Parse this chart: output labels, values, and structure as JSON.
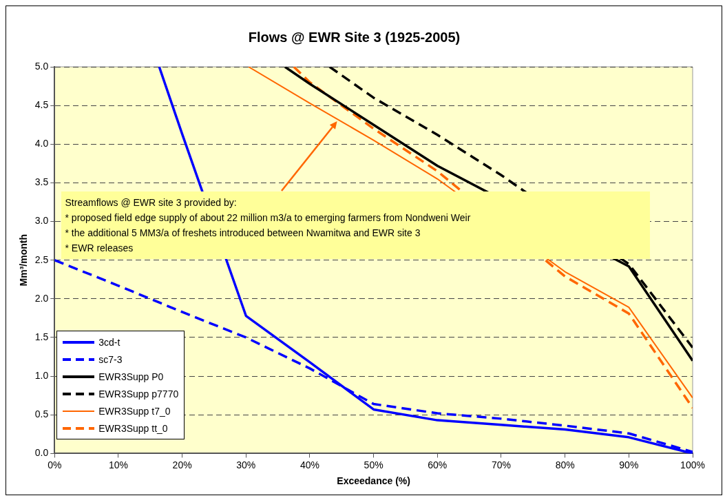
{
  "chart_data": {
    "type": "line",
    "title": "Flows @ EWR Site 3 (1925-2005)",
    "xlabel": "Exceedance (%)",
    "ylabel": "Mm³/month",
    "xlim": [
      0,
      100
    ],
    "ylim": [
      0,
      5
    ],
    "xticks": [
      {
        "value": 0,
        "label": "0%"
      },
      {
        "value": 10,
        "label": "10%"
      },
      {
        "value": 20,
        "label": "20%"
      },
      {
        "value": 30,
        "label": "30%"
      },
      {
        "value": 40,
        "label": "40%"
      },
      {
        "value": 50,
        "label": "50%"
      },
      {
        "value": 60,
        "label": "60%"
      },
      {
        "value": 70,
        "label": "70%"
      },
      {
        "value": 80,
        "label": "80%"
      },
      {
        "value": 90,
        "label": "90%"
      },
      {
        "value": 100,
        "label": "100%"
      }
    ],
    "yticks": [
      {
        "value": 0,
        "label": "0.0"
      },
      {
        "value": 0.5,
        "label": "0.5"
      },
      {
        "value": 1,
        "label": "1.0"
      },
      {
        "value": 1.5,
        "label": "1.5"
      },
      {
        "value": 2,
        "label": "2.0"
      },
      {
        "value": 2.5,
        "label": "2.5"
      },
      {
        "value": 3,
        "label": "3.0"
      },
      {
        "value": 3.5,
        "label": "3.5"
      },
      {
        "value": 4,
        "label": "4.0"
      },
      {
        "value": 4.5,
        "label": "4.5"
      },
      {
        "value": 5,
        "label": "5.0"
      }
    ],
    "grid": "y",
    "legend": "bottom left",
    "marker": "none",
    "series": [
      {
        "name": "3cd-t",
        "color": "#0000ff",
        "line_style": "solid",
        "x": [
          16.4,
          20,
          30,
          40,
          50,
          60,
          70,
          80,
          90,
          100
        ],
        "values": [
          5.0,
          4.13,
          1.78,
          1.18,
          0.57,
          0.43,
          0.37,
          0.31,
          0.21,
          0.0
        ]
      },
      {
        "name": "sc7-3",
        "color": "#0000ff",
        "line_style": "dashed",
        "x": [
          0,
          10,
          20,
          30,
          40,
          50,
          60,
          70,
          80,
          90,
          100
        ],
        "values": [
          2.5,
          2.17,
          1.83,
          1.5,
          1.1,
          0.64,
          0.52,
          0.45,
          0.36,
          0.26,
          0.02
        ]
      },
      {
        "name": "EWR3Supp P0",
        "color": "#000000",
        "line_style": "solid",
        "x": [
          36.1,
          40,
          50,
          60,
          70,
          80,
          90,
          100
        ],
        "values": [
          5.0,
          4.78,
          4.25,
          3.72,
          null,
          null,
          2.42,
          1.2
        ]
      },
      {
        "name": "EWR3Supp p7770",
        "color": "#000000",
        "line_style": "dashed",
        "x": [
          43.1,
          50,
          60,
          70,
          80,
          90,
          100
        ],
        "values": [
          5.0,
          4.6,
          4.12,
          3.6,
          null,
          2.45,
          1.37
        ]
      },
      {
        "name": "EWR3Supp t7_0",
        "color": "#ff6600",
        "line_style": "solid",
        "x": [
          30.4,
          40,
          50,
          60,
          70,
          80,
          90,
          100
        ],
        "values": [
          5.0,
          4.53,
          4.05,
          3.55,
          null,
          2.35,
          1.89,
          0.72
        ]
      },
      {
        "name": "EWR3Supp tt_0",
        "color": "#ff6600",
        "line_style": "dashed",
        "x": [
          37.5,
          40,
          50,
          60,
          70,
          80,
          90,
          100
        ],
        "values": [
          5.0,
          4.8,
          4.2,
          3.65,
          null,
          2.29,
          1.81,
          0.59
        ]
      }
    ],
    "annotations": [
      "Streamflows @ EWR site 3 provided by:\n* proposed field edge supply of about 22 million m3/a to emerging farmers from Nondweni Weir\n* the additional 5 MM3/a of freshets introduced between Nwamitwa and EWR site 3\n* EWR releases"
    ]
  }
}
